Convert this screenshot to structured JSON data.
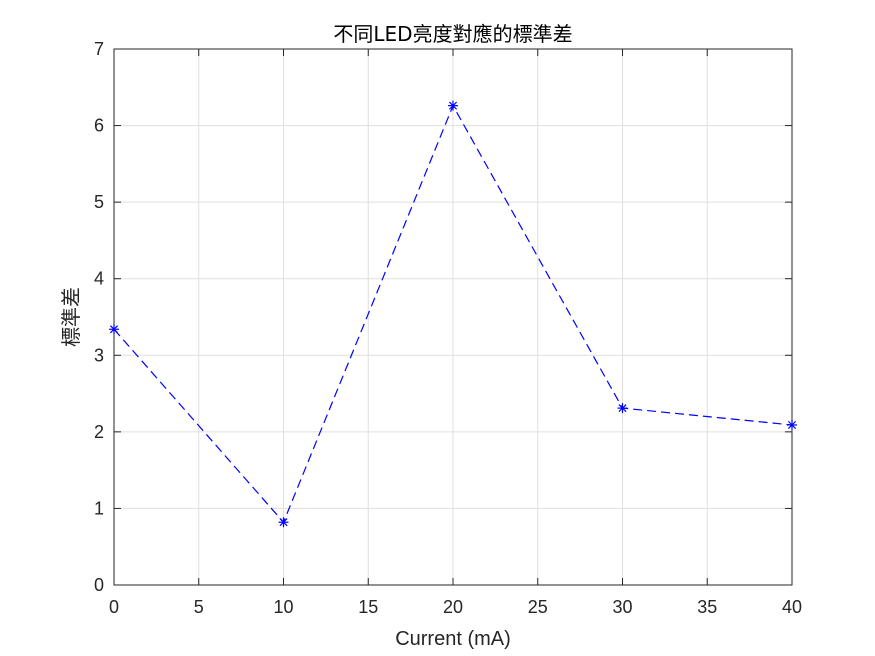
{
  "chart_data": {
    "type": "line",
    "title": "不同LED亮度對應的標準差",
    "xlabel": "Current (mA)",
    "ylabel": "標準差",
    "x": [
      0,
      10,
      20,
      30,
      40
    ],
    "series": [
      {
        "values": [
          3.34,
          0.82,
          6.26,
          2.31,
          2.09
        ],
        "color": "#0000ff",
        "line_style": "dashed",
        "marker": "asterisk"
      }
    ],
    "xlim": [
      0,
      40
    ],
    "ylim": [
      0,
      7
    ],
    "xticks": [
      0,
      5,
      10,
      15,
      20,
      25,
      30,
      35,
      40
    ],
    "yticks": [
      0,
      1,
      2,
      3,
      4,
      5,
      6,
      7
    ],
    "grid": true
  }
}
